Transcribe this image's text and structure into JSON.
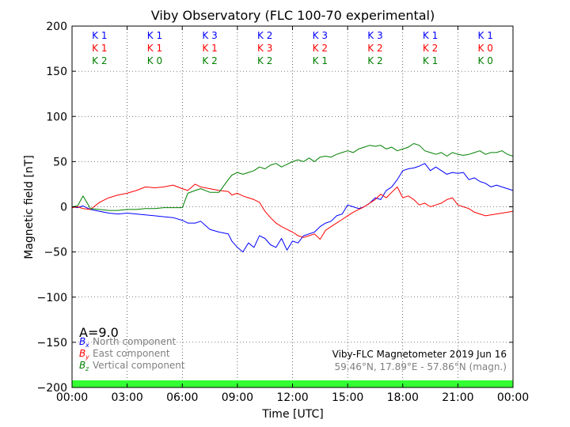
{
  "chart_data": {
    "type": "line",
    "title": "Viby Observatory (FLC 100-70 experimental)",
    "xlabel": "Time [UTC]",
    "ylabel": "Magnetic field [nT]",
    "xlim": [
      0,
      24
    ],
    "ylim": [
      -200,
      200
    ],
    "grid": true,
    "x_ticks": [
      0,
      3,
      6,
      9,
      12,
      15,
      18,
      21,
      24
    ],
    "x_tick_labels": [
      "00:00",
      "03:00",
      "06:00",
      "09:00",
      "12:00",
      "15:00",
      "18:00",
      "21:00",
      "00:00"
    ],
    "y_ticks": [
      -200,
      -150,
      -100,
      -50,
      0,
      50,
      100,
      150,
      200
    ],
    "y_tick_labels": [
      "−200",
      "−150",
      "−100",
      "−50",
      "0",
      "50",
      "100",
      "150",
      "200"
    ],
    "series": [
      {
        "name": "North component",
        "symbol": "B",
        "subscript": "x",
        "color": "#0000ff",
        "x": [
          0,
          0.3,
          0.6,
          1.0,
          1.5,
          2.0,
          2.5,
          3.0,
          3.5,
          4.0,
          4.5,
          5.0,
          5.5,
          6.0,
          6.3,
          6.7,
          7.0,
          7.5,
          8.0,
          8.5,
          8.7,
          9.0,
          9.3,
          9.6,
          9.9,
          10.2,
          10.5,
          10.8,
          11.1,
          11.4,
          11.7,
          12.0,
          12.3,
          12.6,
          12.9,
          13.2,
          13.5,
          13.8,
          14.1,
          14.4,
          14.7,
          15.0,
          15.3,
          15.6,
          15.9,
          16.2,
          16.5,
          16.8,
          17.1,
          17.4,
          17.7,
          18.0,
          18.3,
          18.6,
          18.9,
          19.2,
          19.5,
          19.8,
          20.1,
          20.4,
          20.7,
          21.0,
          21.3,
          21.6,
          21.9,
          22.2,
          22.5,
          22.8,
          23.1,
          23.4,
          23.7,
          24.0
        ],
        "values": [
          0,
          -1,
          1,
          -3,
          -5,
          -7,
          -8,
          -7,
          -8,
          -9,
          -10,
          -11,
          -12,
          -15,
          -18,
          -18,
          -16,
          -25,
          -28,
          -30,
          -38,
          -45,
          -50,
          -40,
          -45,
          -32,
          -35,
          -42,
          -45,
          -35,
          -48,
          -38,
          -40,
          -32,
          -30,
          -28,
          -22,
          -18,
          -16,
          -10,
          -8,
          2,
          0,
          -2,
          0,
          4,
          10,
          8,
          18,
          22,
          30,
          40,
          42,
          43,
          45,
          48,
          40,
          44,
          40,
          36,
          38,
          37,
          38,
          30,
          32,
          28,
          26,
          22,
          24,
          22,
          20,
          18
        ]
      },
      {
        "name": "East component",
        "symbol": "B",
        "subscript": "y",
        "color": "#ff0000",
        "x": [
          0,
          0.3,
          0.6,
          1.0,
          1.5,
          2.0,
          2.5,
          3.0,
          3.5,
          4.0,
          4.5,
          5.0,
          5.5,
          6.0,
          6.3,
          6.7,
          7.0,
          7.5,
          8.0,
          8.5,
          8.7,
          9.0,
          9.3,
          9.6,
          9.9,
          10.2,
          10.5,
          10.8,
          11.1,
          11.4,
          11.7,
          12.0,
          12.3,
          12.6,
          12.9,
          13.2,
          13.5,
          13.8,
          14.1,
          14.4,
          14.7,
          15.0,
          15.3,
          15.6,
          15.9,
          16.2,
          16.5,
          16.8,
          17.1,
          17.4,
          17.7,
          18.0,
          18.3,
          18.6,
          18.9,
          19.2,
          19.5,
          19.8,
          20.1,
          20.4,
          20.7,
          21.0,
          21.3,
          21.6,
          21.9,
          22.2,
          22.5,
          22.8,
          23.1,
          23.4,
          23.7,
          24.0
        ],
        "values": [
          -1,
          0,
          -2,
          -3,
          5,
          10,
          13,
          15,
          18,
          22,
          21,
          22,
          24,
          20,
          18,
          25,
          22,
          20,
          18,
          17,
          13,
          15,
          12,
          10,
          8,
          5,
          -5,
          -12,
          -18,
          -22,
          -25,
          -28,
          -32,
          -34,
          -32,
          -30,
          -36,
          -26,
          -22,
          -18,
          -14,
          -10,
          -6,
          -3,
          0,
          4,
          8,
          14,
          10,
          16,
          22,
          10,
          12,
          8,
          2,
          4,
          0,
          2,
          4,
          8,
          10,
          2,
          0,
          -2,
          -6,
          -8,
          -10,
          -9,
          -8,
          -7,
          -6,
          -5
        ]
      },
      {
        "name": "Vertical component",
        "symbol": "B",
        "subscript": "z",
        "color": "#008000",
        "x": [
          0,
          0.3,
          0.6,
          1.0,
          1.5,
          2.0,
          2.5,
          3.0,
          3.5,
          4.0,
          4.5,
          5.0,
          5.5,
          6.0,
          6.3,
          6.7,
          7.0,
          7.5,
          8.0,
          8.5,
          8.7,
          9.0,
          9.3,
          9.6,
          9.9,
          10.2,
          10.5,
          10.8,
          11.1,
          11.4,
          11.7,
          12.0,
          12.3,
          12.6,
          12.9,
          13.2,
          13.5,
          13.8,
          14.1,
          14.4,
          14.7,
          15.0,
          15.3,
          15.6,
          15.9,
          16.2,
          16.5,
          16.8,
          17.1,
          17.4,
          17.7,
          18.0,
          18.3,
          18.6,
          18.9,
          19.2,
          19.5,
          19.8,
          20.1,
          20.4,
          20.7,
          21.0,
          21.3,
          21.6,
          21.9,
          22.2,
          22.5,
          22.8,
          23.1,
          23.4,
          23.7,
          24.0
        ],
        "values": [
          0,
          1,
          12,
          -2,
          -3,
          -4,
          -4,
          -3,
          -3,
          -2,
          -2,
          -1,
          -1,
          -1,
          15,
          18,
          20,
          16,
          16,
          30,
          35,
          38,
          36,
          38,
          40,
          44,
          42,
          46,
          48,
          44,
          47,
          50,
          52,
          50,
          54,
          50,
          55,
          56,
          55,
          58,
          60,
          62,
          60,
          64,
          66,
          68,
          67,
          68,
          64,
          66,
          62,
          64,
          66,
          70,
          68,
          62,
          60,
          58,
          60,
          56,
          60,
          58,
          57,
          58,
          60,
          62,
          58,
          60,
          60,
          62,
          58,
          56
        ]
      }
    ],
    "k_index_rows": [
      {
        "color": "#0000ff",
        "values": [
          "K 1",
          "K 1",
          "K 3",
          "K 2",
          "K 3",
          "K 3",
          "K 1",
          "K 1"
        ]
      },
      {
        "color": "#ff0000",
        "values": [
          "K 1",
          "K 1",
          "K 1",
          "K 3",
          "K 2",
          "K 2",
          "K 2",
          "K 0"
        ]
      },
      {
        "color": "#008000",
        "values": [
          "K 2",
          "K 0",
          "K 2",
          "K 2",
          "K 1",
          "K 2",
          "K 1",
          "K 0"
        ]
      }
    ],
    "a_index_label": "A=9.0",
    "info_line1": "Viby-FLC Magnetometer 2019 Jun 16",
    "info_line2": "59.46°N, 17.89°E - 57.86°N (magn.)",
    "activity_bar_color": "#33ff33",
    "legend_text_color": "#808080"
  }
}
